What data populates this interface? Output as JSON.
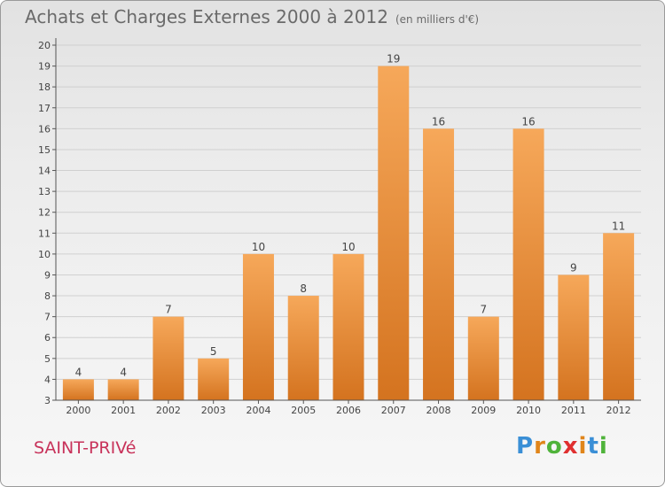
{
  "header": {
    "title": "Achats et Charges Externes 2000 à 2012",
    "unit": "(en milliers d'€)"
  },
  "commune": "SAINT-PRIVé",
  "logo": {
    "text": "Proxiti",
    "letter_colors": [
      "#3a8fd6",
      "#e0851a",
      "#4fb33a",
      "#e03030",
      "#e0851a",
      "#3a8fd6",
      "#4fb33a"
    ]
  },
  "colors": {
    "bar_top": "#f6a85a",
    "bar_bottom": "#d4731f",
    "axis": "#555555",
    "grid": "#d0d0d0"
  },
  "chart_data": {
    "type": "bar",
    "title": "Achats et Charges Externes 2000 à 2012",
    "categories": [
      "2000",
      "2001",
      "2002",
      "2003",
      "2004",
      "2005",
      "2006",
      "2007",
      "2008",
      "2009",
      "2010",
      "2011",
      "2012"
    ],
    "values": [
      4,
      4,
      7,
      5,
      10,
      8,
      10,
      19,
      16,
      7,
      16,
      9,
      11
    ],
    "ylim": [
      3,
      20
    ],
    "yticks": [
      3,
      4,
      5,
      6,
      7,
      8,
      9,
      10,
      11,
      12,
      13,
      14,
      15,
      16,
      17,
      18,
      19,
      20
    ],
    "grid": true,
    "data_labels": true
  }
}
